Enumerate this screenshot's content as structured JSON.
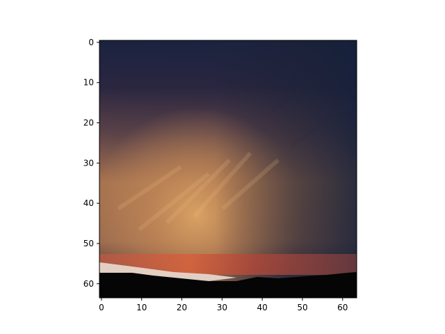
{
  "figure": {
    "background": "#ffffff",
    "image_description_hidden": "",
    "content": "sunset-sky-photo"
  },
  "chart_data": {
    "type": "heatmap",
    "title": "",
    "xlabel": "",
    "ylabel": "",
    "image_size": [
      64,
      64
    ],
    "xlim": [
      -0.5,
      63.5
    ],
    "ylim": [
      63.5,
      -0.5
    ],
    "xticks": [
      0,
      10,
      20,
      30,
      40,
      50,
      60
    ],
    "yticks": [
      0,
      10,
      20,
      30,
      40,
      50,
      60
    ],
    "xtick_labels": [
      "0",
      "10",
      "20",
      "30",
      "40",
      "50",
      "60"
    ],
    "ytick_labels": [
      "0",
      "10",
      "20",
      "30",
      "40",
      "50",
      "60"
    ],
    "grid": false,
    "colors": {
      "sky_top": "#16223d",
      "sky_upper_dark": "#2b2640",
      "cloud_glow": "#d49a5c",
      "cloud_glow_bright": "#e3a865",
      "cloud_mid": "#a0714f",
      "sky_right_dark": "#1a2136",
      "horizon_red": "#d05a3a",
      "horizon_white": "#e9dbd1",
      "ground": "#050505"
    }
  }
}
